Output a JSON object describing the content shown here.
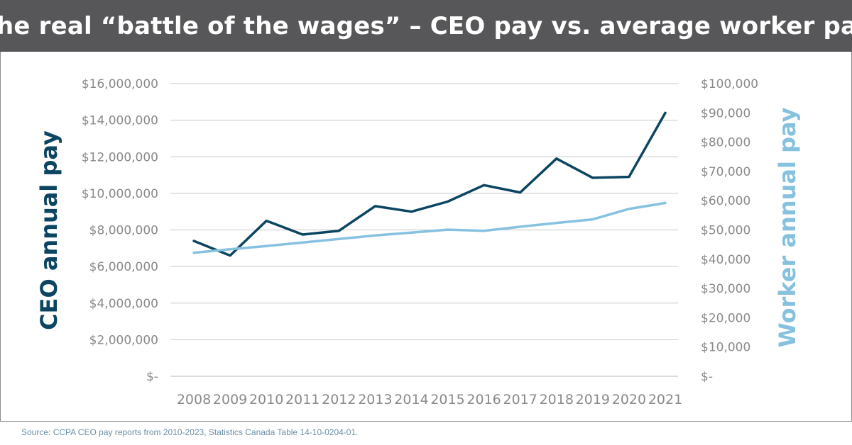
{
  "header": {
    "title": "The real “battle of the wages” – CEO pay vs. average worker pay"
  },
  "source": "Source: CCPA CEO pay reports from 2010-2023, Statistics Canada Table 14-10-0204-01.",
  "colors": {
    "header_bg": "#575759",
    "ceo_series": "#0b4561",
    "worker_series": "#86c2df",
    "grid": "#c8c8c8",
    "tick_text": "#8a8a8c"
  },
  "chart_data": {
    "type": "line",
    "categories": [
      "2008",
      "2009",
      "2010",
      "2011",
      "2012",
      "2013",
      "2014",
      "2015",
      "2016",
      "2017",
      "2018",
      "2019",
      "2020",
      "2021"
    ],
    "y_left": {
      "label": "CEO annual pay",
      "range": [
        0,
        16000000
      ],
      "ticks": [
        0,
        2000000,
        4000000,
        6000000,
        8000000,
        10000000,
        12000000,
        14000000,
        16000000
      ],
      "tick_labels": [
        "$-",
        "$2,000,000",
        "$4,000,000",
        "$6,000,000",
        "$8,000,000",
        "$10,000,000",
        "$12,000,000",
        "$14,000,000",
        "$16,000,000"
      ]
    },
    "y_right": {
      "label": "Worker annual pay",
      "range": [
        0,
        100000
      ],
      "ticks": [
        0,
        10000,
        20000,
        30000,
        40000,
        50000,
        60000,
        70000,
        80000,
        90000,
        100000
      ],
      "tick_labels": [
        "$-",
        "$10,000",
        "$20,000",
        "$30,000",
        "$40,000",
        "$50,000",
        "$60,000",
        "$70,000",
        "$80,000",
        "$90,000",
        "$100,000"
      ]
    },
    "series": [
      {
        "axis": "left",
        "values": [
          7400000,
          6600000,
          8500000,
          7750000,
          7950000,
          9300000,
          9000000,
          9550000,
          10450000,
          10050000,
          11900000,
          10850000,
          10900000,
          14400000
        ]
      },
      {
        "axis": "right",
        "values": [
          42200,
          43400,
          44500,
          45700,
          46900,
          48100,
          49100,
          50100,
          49700,
          51100,
          52400,
          53600,
          57200,
          59200
        ]
      }
    ],
    "grid": true,
    "legend": "none"
  }
}
